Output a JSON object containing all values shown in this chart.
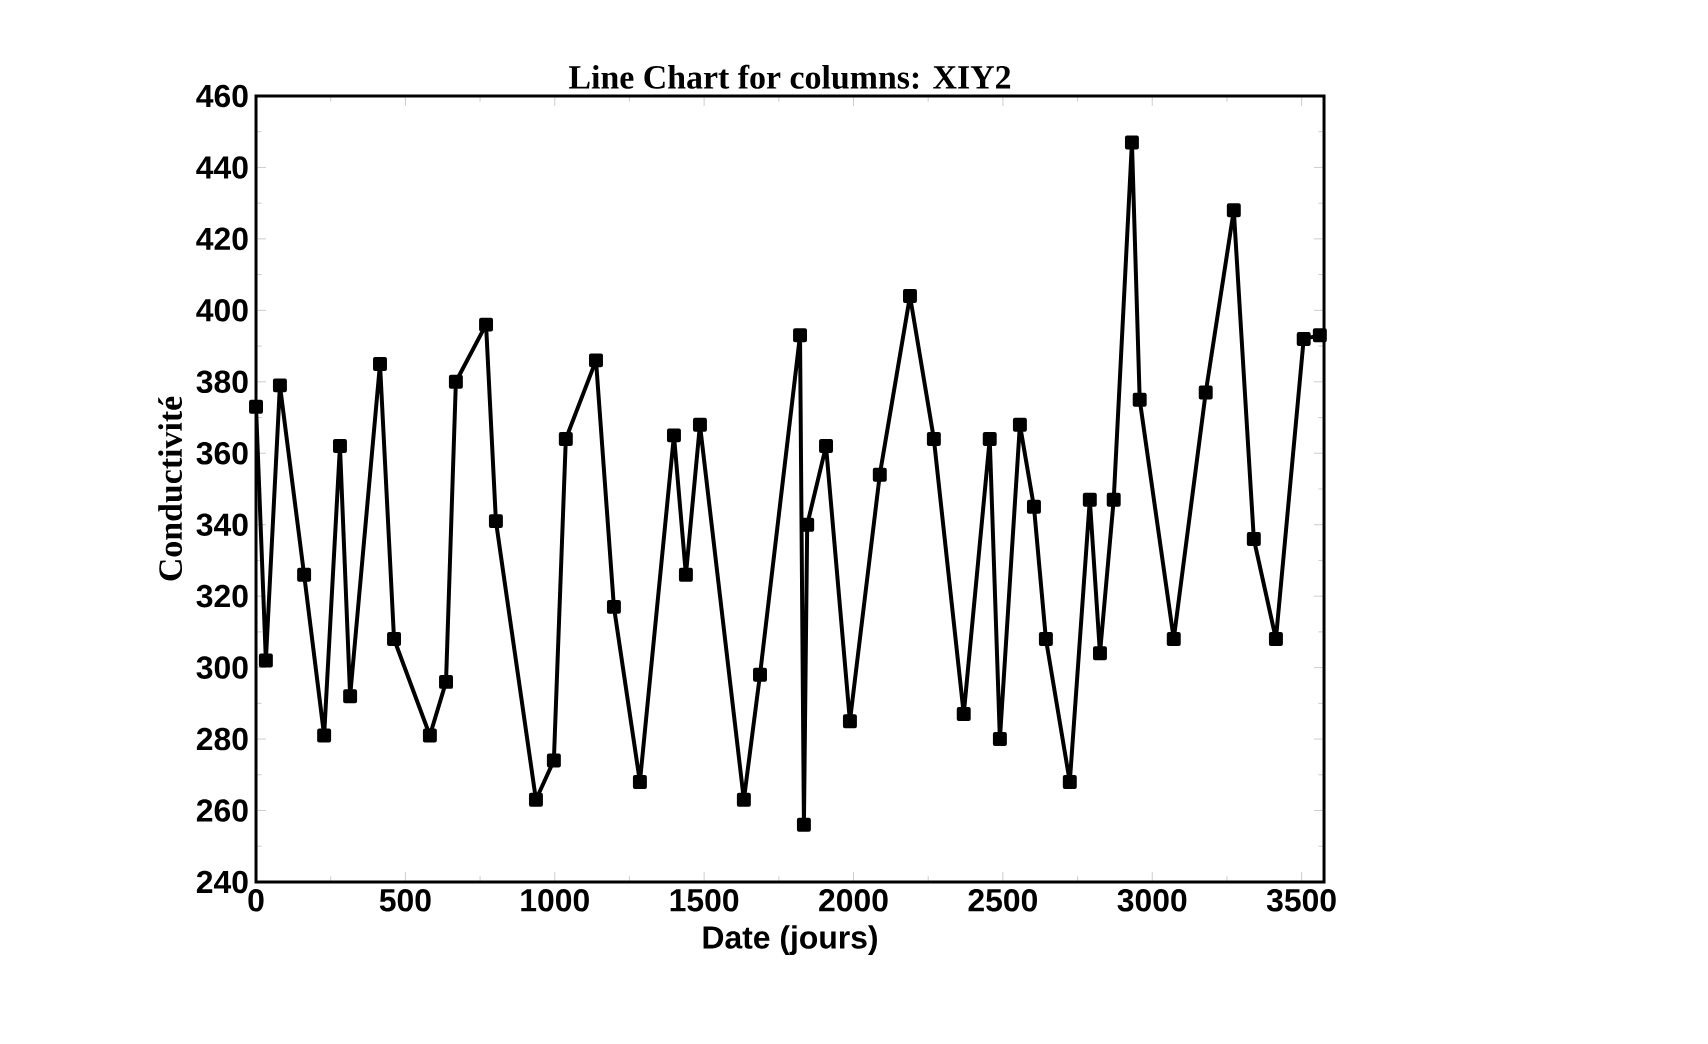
{
  "chart_data": {
    "type": "line",
    "title": "Line Chart for columns: XIY2",
    "xlabel": "Date (jours)",
    "ylabel": "Conductivité",
    "x": [
      0,
      33,
      80,
      161,
      228,
      281,
      315,
      415,
      462,
      582,
      636,
      669,
      770,
      803,
      937,
      997,
      1037,
      1138,
      1198,
      1285,
      1399,
      1439,
      1486,
      1633,
      1687,
      1821,
      1834,
      1845,
      1908,
      1988,
      2088,
      2189,
      2269,
      2369,
      2456,
      2490,
      2557,
      2604,
      2644,
      2724,
      2791,
      2825,
      2871,
      2932,
      2958,
      3072,
      3179,
      3273,
      3340,
      3414,
      3507,
      3561
    ],
    "series": [
      {
        "color": "#000000",
        "values": [
          373,
          302,
          379,
          326,
          281,
          362,
          292,
          385,
          308,
          281,
          296,
          380,
          396,
          341,
          263,
          274,
          364,
          386,
          317,
          268,
          365,
          326,
          368,
          263,
          298,
          393,
          256,
          340,
          362,
          285,
          354,
          404,
          364,
          287,
          364,
          280,
          368,
          345,
          308,
          268,
          347,
          304,
          347,
          447,
          375,
          308,
          377,
          428,
          336,
          308,
          392,
          393
        ]
      }
    ],
    "xlim": [
      0,
      3575
    ],
    "ylim": [
      240,
      460
    ],
    "xticks": [
      0,
      500,
      1000,
      1500,
      2000,
      2500,
      3000,
      3500
    ],
    "yticks": [
      240,
      260,
      280,
      300,
      320,
      340,
      360,
      380,
      400,
      420,
      440,
      460
    ],
    "marker": "square",
    "line_style": "solid"
  }
}
